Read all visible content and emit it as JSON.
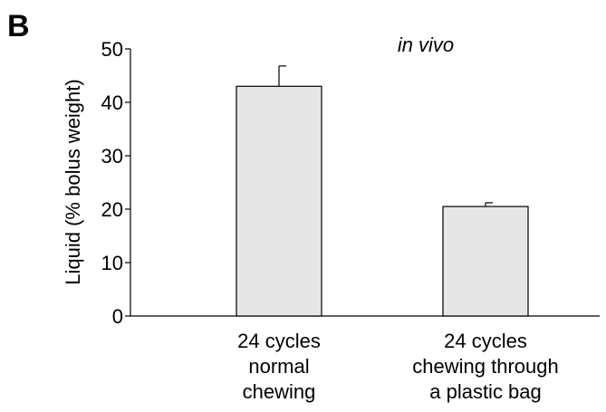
{
  "panel_label": "B",
  "chart_data": {
    "type": "bar",
    "title": "",
    "annotation": "in vivo",
    "xlabel": "",
    "ylabel": "Liquid (% bolus weight)",
    "ylim": [
      0,
      50
    ],
    "yticks": [
      0,
      10,
      20,
      30,
      40,
      50
    ],
    "grid": false,
    "legend": "none",
    "bar_color": "#e6e6e6",
    "categories": [
      {
        "lines": [
          "24 cycles",
          "normal",
          "chewing"
        ]
      },
      {
        "lines": [
          "24 cycles",
          "chewing through",
          "a plastic bag"
        ]
      }
    ],
    "values": [
      43,
      20.5
    ],
    "errors": [
      3.8,
      0.7
    ]
  }
}
